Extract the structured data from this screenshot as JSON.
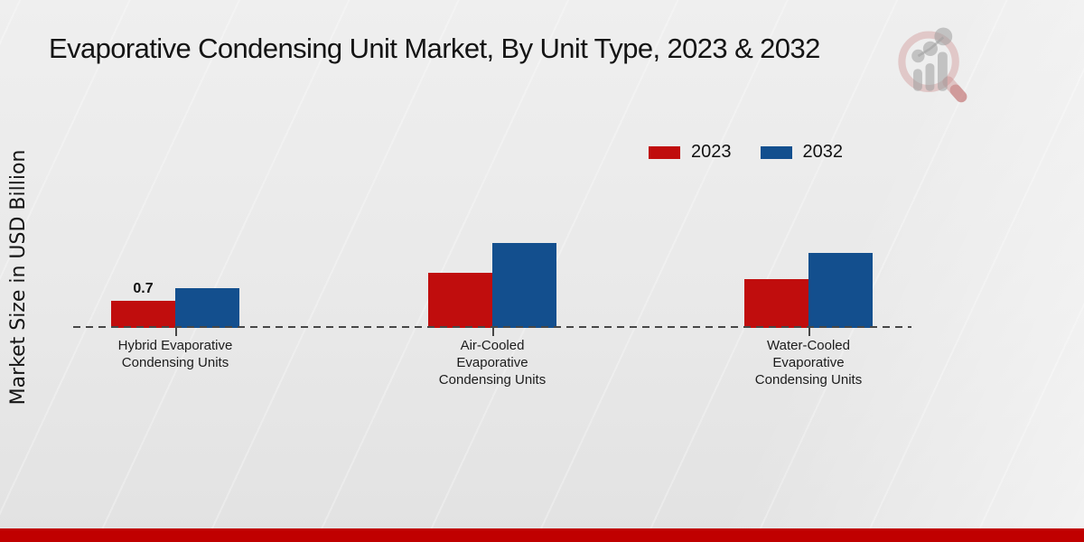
{
  "page": {
    "header_title": "Evaporative Condensing Unit Market, By Unit Type, 2023 & 2032"
  },
  "logo": {
    "icon": "bar-chart-magnifier-watermark"
  },
  "legend": {
    "items": [
      {
        "label": "2023",
        "color": "#c00d0d"
      },
      {
        "label": "2032",
        "color": "#134f8e"
      }
    ]
  },
  "chart_data": {
    "type": "bar",
    "title": "Evaporative Condensing Unit Market, By Unit Type, 2023 & 2032",
    "xlabel": "",
    "ylabel": "Market Size in USD Billion",
    "categories": [
      "Hybrid Evaporative Condensing Units",
      "Air-Cooled Evaporative Condensing Units",
      "Water-Cooled Evaporative Condensing Units"
    ],
    "series": [
      {
        "name": "2023",
        "color": "#c00d0d",
        "values": [
          0.7,
          1.42,
          1.26
        ]
      },
      {
        "name": "2032",
        "color": "#134f8e",
        "values": [
          1.03,
          2.18,
          1.92
        ]
      }
    ],
    "value_labels": [
      {
        "series": "2023",
        "category": "Hybrid Evaporative Condensing Units",
        "text": "0.7"
      }
    ],
    "ylim": [
      0,
      2.5
    ],
    "grid": false,
    "baseline_style": "dashed",
    "legend_position": "top-right"
  },
  "colors": {
    "bottom_band": "#c00000",
    "axis": "#474747",
    "background": "#e9e9e9"
  }
}
